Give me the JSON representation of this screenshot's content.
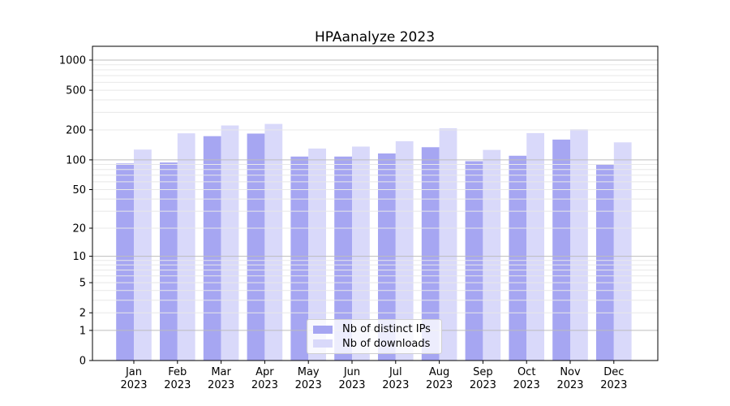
{
  "figure": {
    "background": "#ffffff"
  },
  "chart_data": {
    "type": "bar",
    "title": "HPAanalyze 2023",
    "categories": [
      "Jan",
      "Feb",
      "Mar",
      "Apr",
      "May",
      "Jun",
      "Jul",
      "Aug",
      "Sep",
      "Oct",
      "Nov",
      "Dec"
    ],
    "x_second_line": "2023",
    "series": [
      {
        "name": "Nb of distinct IPs",
        "color": "#a6a6f2",
        "values": [
          92,
          94,
          173,
          184,
          108,
          108,
          116,
          134,
          97,
          110,
          160,
          90
        ]
      },
      {
        "name": "Nb of downloads",
        "color": "#d9d9fa",
        "values": [
          127,
          185,
          222,
          230,
          130,
          136,
          154,
          208,
          126,
          186,
          203,
          150
        ]
      }
    ],
    "yscale": "log1p",
    "yticks": [
      0,
      1,
      2,
      5,
      10,
      20,
      50,
      100,
      200,
      500,
      1000
    ],
    "ylim": [
      0,
      1376
    ],
    "grid": true,
    "grid_major_color": "#bdbdbd",
    "grid_minor_color": "#e8e8e8",
    "legend_position": "lower center",
    "axis_color": "#000000"
  }
}
